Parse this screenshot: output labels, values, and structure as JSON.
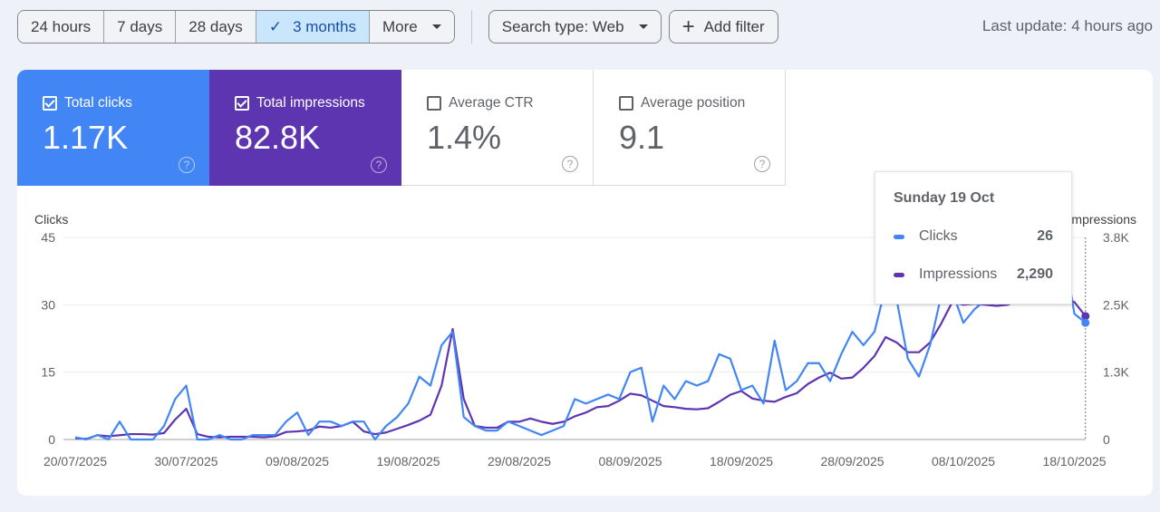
{
  "toolbar": {
    "ranges": [
      "24 hours",
      "7 days",
      "28 days",
      "3 months",
      "More"
    ],
    "active_range": "3 months",
    "search_type": "Search type: Web",
    "add_filter": "Add filter",
    "last_update": "Last update: 4 hours ago"
  },
  "metrics": [
    {
      "label": "Total clicks",
      "value": "1.17K",
      "checked": true,
      "color": "#4285f4"
    },
    {
      "label": "Total impressions",
      "value": "82.8K",
      "checked": true,
      "color": "#5e35b1"
    },
    {
      "label": "Average CTR",
      "value": "1.4%",
      "checked": false
    },
    {
      "label": "Average position",
      "value": "9.1",
      "checked": false
    }
  ],
  "tooltip": {
    "date": "Sunday 19 Oct",
    "rows": [
      {
        "label": "Clicks",
        "value": "26"
      },
      {
        "label": "Impressions",
        "value": "2,290"
      }
    ]
  },
  "chart_data": {
    "type": "line",
    "x_start": "20/07/2025",
    "x_end": "19/10/2025",
    "x_ticks": [
      "20/07/2025",
      "30/07/2025",
      "09/08/2025",
      "19/08/2025",
      "29/08/2025",
      "08/09/2025",
      "18/09/2025",
      "28/09/2025",
      "08/10/2025",
      "18/10/2025"
    ],
    "left_axis": {
      "label": "Clicks",
      "ticks": [
        "0",
        "15",
        "30",
        "45"
      ],
      "range": [
        0,
        45
      ]
    },
    "right_axis": {
      "label": "Impressions",
      "ticks": [
        "0",
        "1.3K",
        "2.5K",
        "3.8K"
      ],
      "range": [
        0,
        3750
      ]
    },
    "grid": true,
    "series": [
      {
        "name": "Clicks",
        "axis": "left",
        "color": "#4285f4",
        "values": [
          0.5,
          0,
          1,
          0,
          4,
          0,
          0,
          0,
          3,
          9,
          12,
          0,
          0,
          1,
          0,
          0,
          1,
          1,
          1,
          4,
          6,
          1,
          4,
          4,
          3,
          4,
          4,
          0,
          3,
          5,
          8,
          14,
          12,
          21,
          24,
          5,
          3,
          2,
          2,
          4,
          3,
          2,
          1,
          2,
          3,
          9,
          8,
          9,
          10,
          9,
          15,
          16,
          4,
          12,
          9,
          13,
          12,
          13,
          19,
          18,
          11,
          12,
          8,
          22,
          11,
          13,
          17,
          17,
          13,
          19,
          24,
          21,
          24,
          34,
          31,
          18,
          14,
          21,
          32,
          33,
          26,
          29,
          31,
          34,
          38,
          43,
          39,
          45,
          37,
          43,
          28,
          26
        ]
      },
      {
        "name": "Impressions",
        "axis": "right",
        "color": "#5e35b1",
        "values": [
          25,
          10,
          80,
          60,
          80,
          100,
          100,
          90,
          120,
          370,
          570,
          100,
          50,
          40,
          50,
          50,
          50,
          40,
          60,
          140,
          150,
          170,
          240,
          220,
          250,
          330,
          150,
          100,
          130,
          200,
          270,
          350,
          460,
          1000,
          2050,
          750,
          250,
          220,
          220,
          330,
          330,
          390,
          330,
          290,
          330,
          430,
          500,
          600,
          620,
          720,
          850,
          820,
          720,
          620,
          600,
          570,
          560,
          580,
          700,
          830,
          900,
          760,
          720,
          700,
          790,
          860,
          1030,
          1150,
          1240,
          1130,
          1150,
          1330,
          1550,
          1900,
          1800,
          1620,
          1620,
          1800,
          2150,
          2550,
          2500,
          2520,
          2500,
          2480,
          2500,
          2600,
          2700,
          2750,
          2700,
          2650,
          2550,
          2290
        ]
      }
    ]
  }
}
